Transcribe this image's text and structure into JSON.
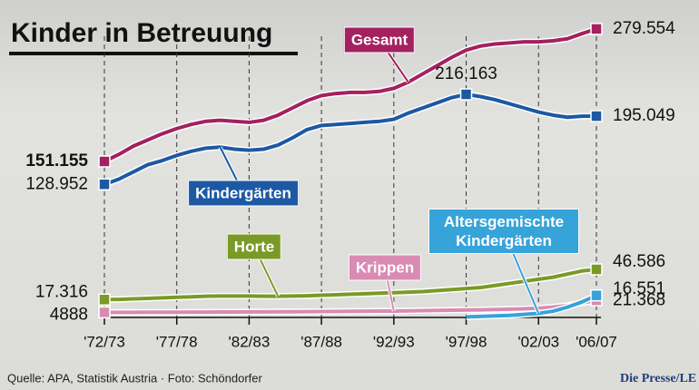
{
  "chart_data": {
    "type": "line",
    "title": "Kinder in Betreuung",
    "categories": [
      "'72/73",
      null,
      null,
      null,
      null,
      "'77/78",
      null,
      null,
      null,
      null,
      "'82/83",
      null,
      null,
      null,
      null,
      "'87/88",
      null,
      null,
      null,
      null,
      "'92/93",
      null,
      null,
      null,
      null,
      "'97/98",
      null,
      null,
      null,
      null,
      "'02/03",
      null,
      null,
      null,
      "'06/07"
    ],
    "ylim": [
      0,
      290000
    ],
    "series": [
      {
        "name": "Gesamt",
        "color": "#a3215f",
        "values": [
          151155,
          158000,
          166000,
          172000,
          178000,
          183000,
          187000,
          190000,
          191000,
          190000,
          189000,
          191000,
          196000,
          203000,
          210000,
          215000,
          217000,
          218000,
          218000,
          219000,
          222000,
          228000,
          236000,
          244000,
          252000,
          259000,
          263000,
          265000,
          266000,
          267000,
          267000,
          268000,
          270000,
          275000,
          279554
        ],
        "value_labels": [
          "151.155",
          null,
          null,
          null,
          null,
          null,
          null,
          null,
          null,
          null,
          null,
          null,
          null,
          null,
          null,
          null,
          null,
          null,
          null,
          null,
          null,
          null,
          null,
          null,
          null,
          null,
          null,
          null,
          null,
          null,
          null,
          null,
          null,
          null,
          "279.554"
        ]
      },
      {
        "name": "Kindergärten",
        "color": "#1d59a3",
        "values": [
          128952,
          134000,
          141000,
          148000,
          152000,
          157000,
          161000,
          164000,
          165000,
          163000,
          162000,
          163000,
          167000,
          174000,
          182000,
          186000,
          187000,
          188000,
          189000,
          190000,
          192000,
          198000,
          203000,
          208000,
          213000,
          216163,
          214000,
          211000,
          207000,
          203000,
          199000,
          196000,
          194000,
          195000,
          195049
        ],
        "value_labels": [
          "128.952",
          null,
          null,
          null,
          null,
          null,
          null,
          null,
          null,
          null,
          null,
          null,
          null,
          null,
          null,
          null,
          null,
          null,
          null,
          null,
          null,
          null,
          null,
          null,
          null,
          "216.163",
          null,
          null,
          null,
          null,
          null,
          null,
          null,
          null,
          "195.049"
        ]
      },
      {
        "name": "Horte",
        "color": "#7a9a26",
        "values": [
          17316,
          17500,
          18000,
          18500,
          19000,
          19500,
          20000,
          20500,
          20800,
          20800,
          20800,
          20500,
          20500,
          20800,
          21000,
          21500,
          22000,
          22500,
          23000,
          23500,
          24000,
          24500,
          25000,
          26000,
          27000,
          28000,
          29000,
          31000,
          33000,
          35000,
          37000,
          39000,
          42000,
          45000,
          46586
        ],
        "value_labels": [
          "17.316",
          null,
          null,
          null,
          null,
          null,
          null,
          null,
          null,
          null,
          null,
          null,
          null,
          null,
          null,
          null,
          null,
          null,
          null,
          null,
          null,
          null,
          null,
          null,
          null,
          null,
          null,
          null,
          null,
          null,
          null,
          null,
          null,
          null,
          "46.586"
        ]
      },
      {
        "name": "Krippen",
        "color": "#d98bb3",
        "values": [
          4888,
          4900,
          4950,
          5000,
          5050,
          5100,
          5150,
          5200,
          5250,
          5300,
          5350,
          5400,
          5450,
          5500,
          5600,
          5700,
          5800,
          5900,
          6000,
          6100,
          6200,
          6400,
          6600,
          6800,
          7000,
          7200,
          7400,
          7700,
          8000,
          8400,
          9000,
          10000,
          11500,
          14000,
          16551
        ],
        "value_labels": [
          "4888",
          null,
          null,
          null,
          null,
          null,
          null,
          null,
          null,
          null,
          null,
          null,
          null,
          null,
          null,
          null,
          null,
          null,
          null,
          null,
          null,
          null,
          null,
          null,
          null,
          null,
          null,
          null,
          null,
          null,
          null,
          null,
          null,
          null,
          "16.551"
        ]
      },
      {
        "name": "Altersgemischte Kindergärten",
        "color": "#36a3d9",
        "values": [
          null,
          null,
          null,
          null,
          null,
          null,
          null,
          null,
          null,
          null,
          null,
          null,
          null,
          null,
          null,
          null,
          null,
          null,
          null,
          null,
          null,
          null,
          null,
          null,
          null,
          500,
          1000,
          1500,
          2000,
          3000,
          4000,
          6000,
          10000,
          15000,
          21368
        ],
        "value_labels": [
          null,
          null,
          null,
          null,
          null,
          null,
          null,
          null,
          null,
          null,
          null,
          null,
          null,
          null,
          null,
          null,
          null,
          null,
          null,
          null,
          null,
          null,
          null,
          null,
          null,
          null,
          null,
          null,
          null,
          null,
          null,
          null,
          null,
          null,
          "21.368"
        ]
      }
    ],
    "source": "Quelle: APA, Statistik Austria  ·  Foto: Schöndorfer",
    "brand": "Die Presse/LE"
  }
}
